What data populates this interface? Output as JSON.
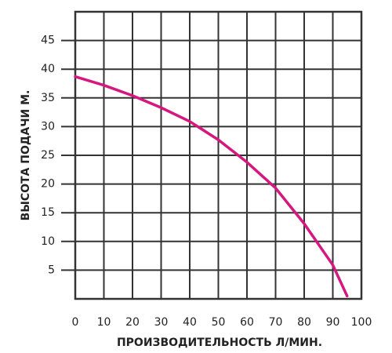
{
  "chart_data": {
    "type": "line",
    "xlabel": "ПРОИЗВОДИТЕЛЬНОСТЬ Л/МИН.",
    "ylabel": "ВЫСОТА ПОДАЧИ М.",
    "x": [
      0,
      10,
      20,
      30,
      40,
      50,
      60,
      70,
      80,
      90,
      95
    ],
    "series": [
      {
        "color": "#d6177f",
        "values": [
          38.7,
          37.2,
          35.4,
          33.3,
          30.9,
          27.7,
          23.8,
          19.3,
          13.1,
          5.9,
          0.5
        ]
      }
    ],
    "xlim": [
      0,
      100
    ],
    "xticks": [
      0,
      10,
      20,
      30,
      40,
      50,
      60,
      70,
      80,
      90,
      100
    ],
    "ylim": [
      0,
      50
    ],
    "yticks": [
      5,
      10,
      15,
      20,
      25,
      30,
      35,
      40,
      45
    ],
    "grid": true
  }
}
